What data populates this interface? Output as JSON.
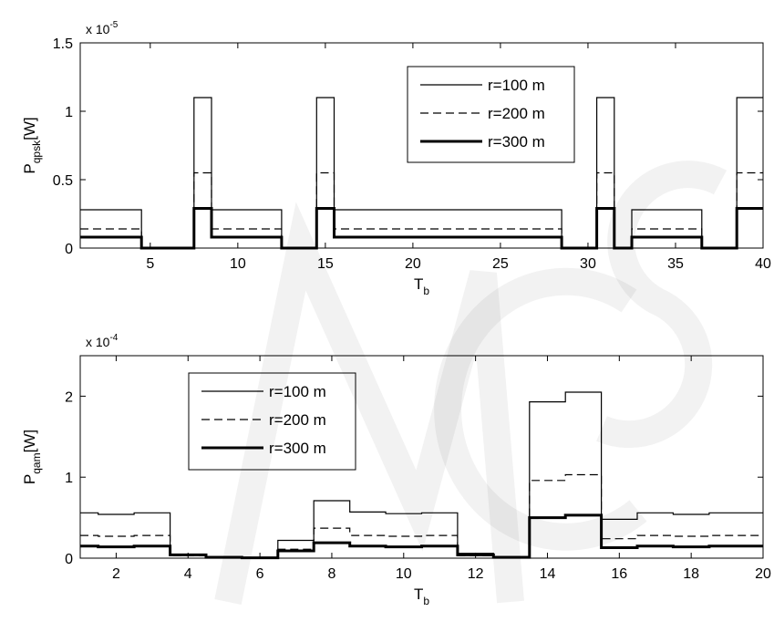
{
  "chart_data": [
    {
      "type": "line",
      "step": true,
      "xlabel_main": "T",
      "xlabel_sub": "b",
      "ylabel_main": "P",
      "ylabel_sub": "qpsk",
      "ylabel_unit": "[W]",
      "multiplier_base": "x 10",
      "multiplier_exp": "-5",
      "xlim": [
        1,
        40
      ],
      "ylim": [
        0,
        1.5
      ],
      "xticks": [
        5,
        10,
        15,
        20,
        25,
        30,
        35,
        40
      ],
      "xticklabels": [
        "5",
        "10",
        "15",
        "20",
        "25",
        "30",
        "35",
        "40"
      ],
      "yticks": [
        0,
        0.5,
        1,
        1.5
      ],
      "yticklabels": [
        "0",
        "0.5",
        "1",
        "1.5"
      ],
      "legend_position": "top-right",
      "x": [
        1,
        2,
        3,
        4,
        5,
        6,
        7,
        8,
        9,
        10,
        11,
        12,
        13,
        14,
        15,
        16,
        17,
        18,
        19,
        20,
        21,
        22,
        23,
        24,
        25,
        26,
        27,
        28,
        29,
        30,
        31,
        32,
        33,
        34,
        35,
        36,
        37,
        38,
        39,
        40
      ],
      "series": [
        {
          "name": "r=100 m",
          "style": "solid",
          "width": 1.2,
          "values": [
            0.28,
            0.28,
            0.28,
            0.28,
            0,
            0,
            0,
            1.1,
            0.28,
            0.28,
            0.28,
            0.28,
            0,
            0,
            1.1,
            0.28,
            0.28,
            0.28,
            0.28,
            0.28,
            0.28,
            0.28,
            0.28,
            0.28,
            0.28,
            0.28,
            0.28,
            0.28,
            0,
            0,
            1.1,
            0,
            0.28,
            0.28,
            0.28,
            0.28,
            0,
            0,
            1.1,
            1.1
          ]
        },
        {
          "name": "r=200 m",
          "style": "dashed",
          "width": 1.2,
          "values": [
            0.14,
            0.14,
            0.14,
            0.14,
            0,
            0,
            0,
            0.55,
            0.14,
            0.14,
            0.14,
            0.14,
            0,
            0,
            0.55,
            0.14,
            0.14,
            0.14,
            0.14,
            0.14,
            0.14,
            0.14,
            0.14,
            0.14,
            0.14,
            0.14,
            0.14,
            0.14,
            0,
            0,
            0.55,
            0,
            0.14,
            0.14,
            0.14,
            0.14,
            0,
            0,
            0.55,
            0.55
          ]
        },
        {
          "name": "r=300 m",
          "style": "solid",
          "width": 3,
          "values": [
            0.08,
            0.08,
            0.08,
            0.08,
            0,
            0,
            0,
            0.29,
            0.08,
            0.08,
            0.08,
            0.08,
            0,
            0,
            0.29,
            0.08,
            0.08,
            0.08,
            0.08,
            0.08,
            0.08,
            0.08,
            0.08,
            0.08,
            0.08,
            0.08,
            0.08,
            0.08,
            0,
            0,
            0.29,
            0,
            0.08,
            0.08,
            0.08,
            0.08,
            0,
            0,
            0.29,
            0.29
          ]
        }
      ]
    },
    {
      "type": "line",
      "step": true,
      "xlabel_main": "T",
      "xlabel_sub": "b",
      "ylabel_main": "P",
      "ylabel_sub": "qam",
      "ylabel_unit": "[W]",
      "multiplier_base": "x 10",
      "multiplier_exp": "-4",
      "xlim": [
        1,
        20
      ],
      "ylim": [
        0,
        2.5
      ],
      "xticks": [
        2,
        4,
        6,
        8,
        10,
        12,
        14,
        16,
        18,
        20
      ],
      "xticklabels": [
        "2",
        "4",
        "6",
        "8",
        "10",
        "12",
        "14",
        "16",
        "18",
        "20"
      ],
      "yticks": [
        0,
        1,
        2
      ],
      "yticklabels": [
        "0",
        "1",
        "2"
      ],
      "legend_position": "top-left",
      "x": [
        1,
        2,
        3,
        4,
        5,
        6,
        7,
        8,
        9,
        10,
        11,
        12,
        13,
        14,
        15,
        16,
        17,
        18,
        19,
        20
      ],
      "series": [
        {
          "name": "r=100 m",
          "style": "solid",
          "width": 1.2,
          "values": [
            0.56,
            0.54,
            0.56,
            0.05,
            0.02,
            0.01,
            0.22,
            0.71,
            0.57,
            0.55,
            0.56,
            0.06,
            0.02,
            1.93,
            2.05,
            0.48,
            0.56,
            0.54,
            0.56,
            0.56
          ]
        },
        {
          "name": "r=200 m",
          "style": "dashed",
          "width": 1.2,
          "values": [
            0.28,
            0.27,
            0.28,
            0.03,
            0.01,
            0.005,
            0.11,
            0.37,
            0.28,
            0.27,
            0.28,
            0.03,
            0.01,
            0.96,
            1.03,
            0.24,
            0.28,
            0.27,
            0.28,
            0.28
          ]
        },
        {
          "name": "r=300 m",
          "style": "solid",
          "width": 3,
          "values": [
            0.15,
            0.14,
            0.15,
            0.04,
            0.01,
            0.005,
            0.09,
            0.19,
            0.15,
            0.14,
            0.15,
            0.04,
            0.01,
            0.5,
            0.53,
            0.13,
            0.15,
            0.14,
            0.15,
            0.15
          ]
        }
      ]
    }
  ]
}
